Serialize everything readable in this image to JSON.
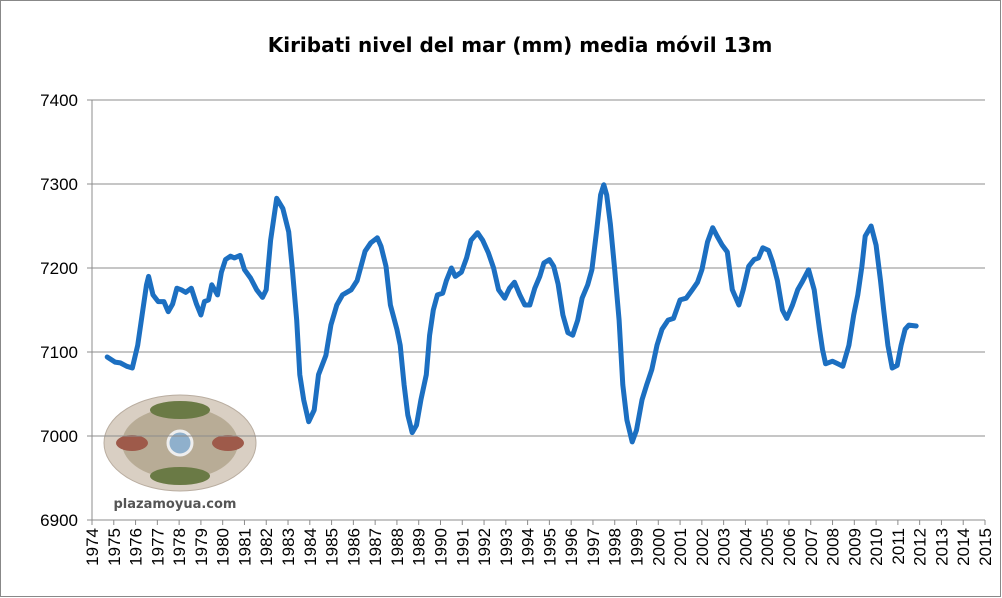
{
  "chart_data": {
    "type": "line",
    "title": "Kiribati nivel del mar (mm) media móvil 13m",
    "watermark": "plazamoyua.com",
    "xlim": [
      1974,
      2015
    ],
    "xticks": [
      1974,
      1975,
      1976,
      1977,
      1978,
      1979,
      1980,
      1981,
      1982,
      1983,
      1984,
      1985,
      1986,
      1987,
      1988,
      1989,
      1990,
      1991,
      1992,
      1993,
      1994,
      1995,
      1996,
      1997,
      1998,
      1999,
      2000,
      2001,
      2002,
      2003,
      2004,
      2005,
      2006,
      2007,
      2008,
      2009,
      2010,
      2011,
      2012,
      2013,
      2014,
      2015
    ],
    "ylim": [
      6900,
      7400
    ],
    "yticks": [
      6900,
      7000,
      7100,
      7200,
      7300,
      7400
    ],
    "grid": true,
    "series": [
      {
        "color": "#1c6fc1",
        "x": [
          1974.7,
          1975.06,
          1975.3,
          1975.6,
          1975.85,
          1976.1,
          1976.3,
          1976.5,
          1976.6,
          1976.8,
          1977.04,
          1977.3,
          1977.5,
          1977.7,
          1977.9,
          1978.1,
          1978.3,
          1978.56,
          1978.8,
          1979.0,
          1979.16,
          1979.35,
          1979.5,
          1979.76,
          1979.94,
          1980.13,
          1980.36,
          1980.54,
          1980.8,
          1981.0,
          1981.28,
          1981.56,
          1981.83,
          1982.0,
          1982.2,
          1982.48,
          1982.76,
          1983.03,
          1983.2,
          1983.4,
          1983.54,
          1983.72,
          1983.95,
          1984.2,
          1984.4,
          1984.74,
          1984.97,
          1985.24,
          1985.5,
          1985.9,
          1986.17,
          1986.35,
          1986.54,
          1986.8,
          1987.1,
          1987.27,
          1987.5,
          1987.7,
          1988.0,
          1988.15,
          1988.33,
          1988.5,
          1988.7,
          1988.9,
          1989.1,
          1989.35,
          1989.5,
          1989.67,
          1989.86,
          1990.1,
          1990.27,
          1990.5,
          1990.68,
          1990.96,
          1991.2,
          1991.4,
          1991.7,
          1991.94,
          1992.2,
          1992.44,
          1992.67,
          1992.95,
          1993.17,
          1993.4,
          1993.64,
          1993.87,
          1994.1,
          1994.33,
          1994.56,
          1994.75,
          1995.0,
          1995.2,
          1995.4,
          1995.62,
          1995.85,
          1996.07,
          1996.3,
          1996.5,
          1996.76,
          1996.95,
          1997.17,
          1997.35,
          1997.5,
          1997.63,
          1997.8,
          1998.0,
          1998.2,
          1998.37,
          1998.56,
          1998.8,
          1999.0,
          1999.25,
          1999.47,
          1999.7,
          1999.94,
          2000.17,
          2000.45,
          2000.7,
          2001.0,
          2001.28,
          2001.56,
          2001.8,
          2002.0,
          2002.26,
          2002.5,
          2002.7,
          2002.94,
          2003.17,
          2003.4,
          2003.7,
          2003.9,
          2004.15,
          2004.4,
          2004.6,
          2004.8,
          2005.06,
          2005.25,
          2005.47,
          2005.7,
          2005.9,
          2006.16,
          2006.4,
          2006.6,
          2006.9,
          2007.16,
          2007.4,
          2007.54,
          2007.68,
          2008.0,
          2008.24,
          2008.47,
          2008.75,
          2008.97,
          2009.16,
          2009.35,
          2009.5,
          2009.77,
          2010.0,
          2010.2,
          2010.35,
          2010.54,
          2010.74,
          2010.97,
          2011.15,
          2011.33,
          2011.5,
          2011.84
        ],
        "values": [
          7094,
          7088,
          7087,
          7083,
          7081,
          7108,
          7144,
          7180,
          7190,
          7168,
          7160,
          7160,
          7148,
          7157,
          7176,
          7174,
          7171,
          7176,
          7157,
          7144,
          7160,
          7162,
          7180,
          7168,
          7195,
          7210,
          7214,
          7212,
          7215,
          7198,
          7188,
          7174,
          7165,
          7174,
          7233,
          7283,
          7271,
          7243,
          7198,
          7138,
          7073,
          7043,
          7017,
          7031,
          7073,
          7096,
          7132,
          7156,
          7168,
          7174,
          7185,
          7202,
          7220,
          7230,
          7236,
          7226,
          7202,
          7156,
          7127,
          7108,
          7061,
          7025,
          7004,
          7013,
          7043,
          7073,
          7120,
          7150,
          7168,
          7170,
          7185,
          7200,
          7190,
          7195,
          7212,
          7233,
          7242,
          7233,
          7218,
          7200,
          7174,
          7164,
          7176,
          7183,
          7168,
          7156,
          7156,
          7176,
          7190,
          7206,
          7210,
          7202,
          7181,
          7144,
          7123,
          7120,
          7138,
          7164,
          7180,
          7198,
          7245,
          7287,
          7299,
          7287,
          7252,
          7198,
          7138,
          7061,
          7019,
          6993,
          7007,
          7043,
          7061,
          7079,
          7108,
          7127,
          7138,
          7140,
          7162,
          7164,
          7174,
          7183,
          7198,
          7231,
          7248,
          7238,
          7227,
          7219,
          7174,
          7156,
          7174,
          7202,
          7210,
          7212,
          7224,
          7221,
          7207,
          7185,
          7150,
          7140,
          7156,
          7174,
          7183,
          7198,
          7174,
          7127,
          7103,
          7086,
          7089,
          7086,
          7083,
          7108,
          7144,
          7168,
          7202,
          7238,
          7250,
          7227,
          7185,
          7150,
          7108,
          7081,
          7084,
          7108,
          7127,
          7132,
          7131
        ]
      }
    ]
  }
}
